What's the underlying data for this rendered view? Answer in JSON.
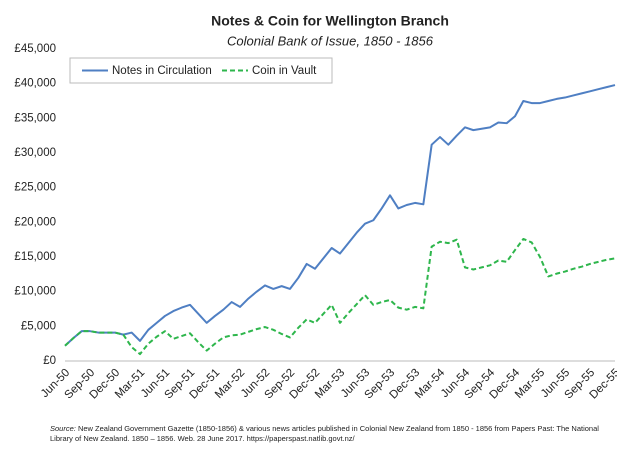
{
  "chart_data": {
    "type": "line",
    "title": "Notes & Coin for Wellington Branch",
    "subtitle": "Colonial Bank of Issue, 1850 - 1856",
    "source_label": "Source:",
    "source": "New Zealand Government Gazette (1850-1856) & various news articles published in Colonial New Zealand from 1850 - 1856 from Papers Past: The National Library of New Zealand. 1850 – 1856. Web. 28 June 2017. https://paperspast.natlib.govt.nz/",
    "categories": [
      "Jun-50",
      null,
      null,
      "Sep-50",
      null,
      null,
      "Dec-50",
      null,
      null,
      "Mar-51",
      null,
      null,
      "Jun-51",
      null,
      null,
      "Sep-51",
      null,
      null,
      "Dec-51",
      null,
      null,
      "Mar-52",
      null,
      null,
      "Jun-52",
      null,
      null,
      "Sep-52",
      null,
      null,
      "Dec-52",
      null,
      null,
      "Mar-53",
      null,
      null,
      "Jun-53",
      null,
      null,
      "Sep-53",
      null,
      null,
      "Dec-53",
      null,
      null,
      "Mar-54",
      null,
      null,
      "Jun-54",
      null,
      null,
      "Sep-54",
      null,
      null,
      "Dec-54",
      null,
      null,
      "Mar-55",
      null,
      null,
      "Jun-55",
      null,
      null,
      "Sep-55",
      null,
      null,
      "Dec-55"
    ],
    "series": [
      {
        "name": "Notes in Circulation",
        "color": "#4f7fc3",
        "dash": false,
        "values": [
          2200,
          3300,
          4300,
          4300,
          4100,
          4100,
          4100,
          3800,
          4100,
          2900,
          4500,
          5500,
          6500,
          7200,
          7700,
          8100,
          6800,
          5500,
          6500,
          7400,
          8500,
          7800,
          9000,
          10000,
          10900,
          10400,
          10800,
          10400,
          12000,
          14000,
          13300,
          14800,
          16300,
          15500,
          17000,
          18500,
          19800,
          20300,
          22000,
          23900,
          22000,
          22500,
          22800,
          22600,
          31200,
          32300,
          31200,
          32500,
          33700,
          33300,
          33500,
          33700,
          34400,
          34300,
          35300,
          37500,
          37200,
          37200,
          37500,
          37800,
          38000,
          38300,
          38600,
          38900,
          39200,
          39500,
          39800
        ]
      },
      {
        "name": "Coin in Vault",
        "color": "#2eb64c",
        "dash": true,
        "values": [
          2200,
          3300,
          4300,
          4300,
          4100,
          4100,
          4100,
          3800,
          2000,
          1000,
          2500,
          3500,
          4300,
          3200,
          3600,
          4000,
          2700,
          1500,
          2500,
          3400,
          3700,
          3800,
          4200,
          4600,
          4900,
          4500,
          3900,
          3400,
          4800,
          6000,
          5500,
          6800,
          8100,
          5500,
          6900,
          8200,
          9500,
          8100,
          8500,
          8800,
          7700,
          7400,
          7800,
          7600,
          16500,
          17200,
          17000,
          17500,
          13500,
          13200,
          13500,
          13800,
          14500,
          14300,
          16000,
          17600,
          17100,
          15000,
          12200,
          12600,
          12900,
          13300,
          13600,
          14000,
          14300,
          14600,
          14800
        ]
      }
    ],
    "ylim": [
      0,
      45000
    ],
    "yticks": [
      {
        "value": 0,
        "label": "£0"
      },
      {
        "value": 5000,
        "label": "£5,000"
      },
      {
        "value": 10000,
        "label": "£10,000"
      },
      {
        "value": 15000,
        "label": "£15,000"
      },
      {
        "value": 20000,
        "label": "£20,000"
      },
      {
        "value": 25000,
        "label": "£25,000"
      },
      {
        "value": 30000,
        "label": "£30,000"
      },
      {
        "value": 35000,
        "label": "£35,000"
      },
      {
        "value": 40000,
        "label": "£40,000"
      },
      {
        "value": 45000,
        "label": "£45,000"
      }
    ],
    "grid": false,
    "legend": "top-left"
  }
}
